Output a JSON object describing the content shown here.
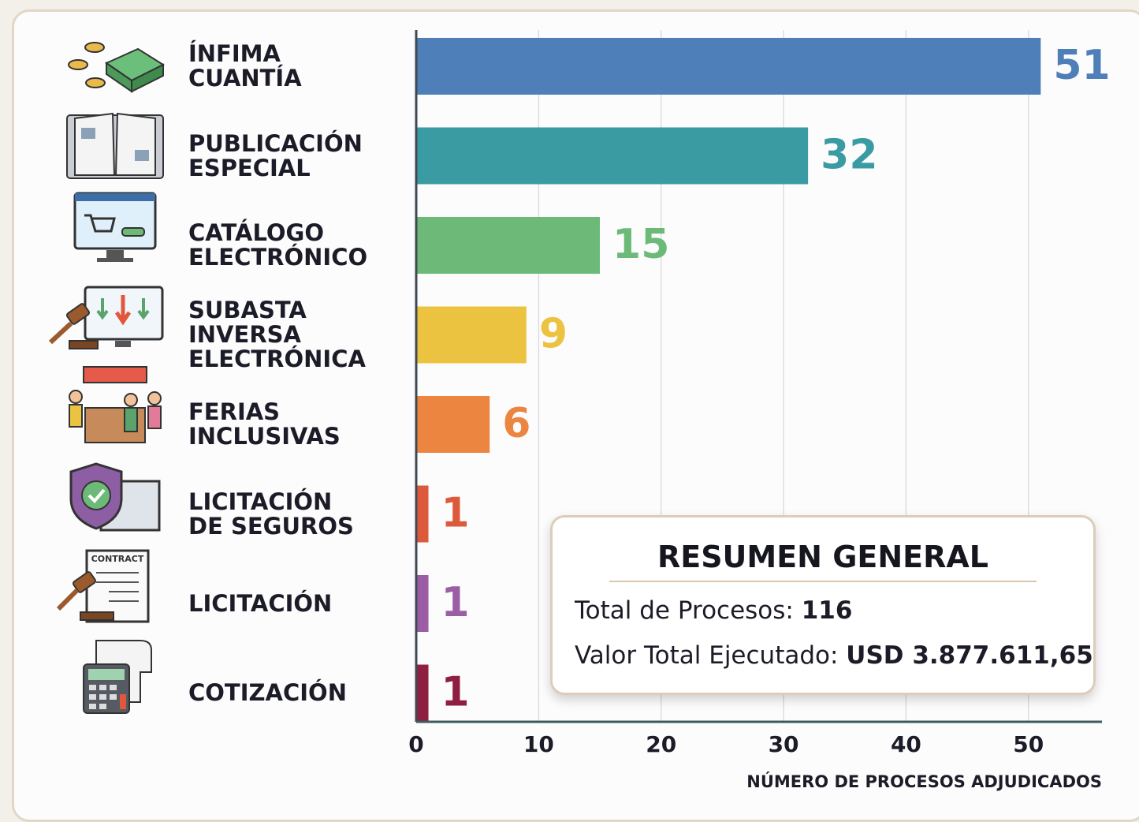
{
  "chart_data": {
    "type": "bar",
    "orientation": "horizontal",
    "categories": [
      "ÍNFIMA\nCUANTÍA",
      "PUBLICACIÓN\nESPECIAL",
      "CATÁLOGO\nELECTRÓNICO",
      "SUBASTA\nINVERSA\nELECTRÓNICA",
      "FERIAS\nINCLUSIVAS",
      "LICITACIÓN\nDE SEGUROS",
      "LICITACIÓN",
      "COTIZACIÓN"
    ],
    "values": [
      51,
      32,
      15,
      9,
      6,
      1,
      1,
      1
    ],
    "colors": [
      "#4f7fb8",
      "#3a9ba3",
      "#6dba78",
      "#ebc340",
      "#ec853f",
      "#dc5a3b",
      "#9b5ea5",
      "#8e1f40"
    ],
    "xlim": [
      0,
      56
    ],
    "xticks": [
      0,
      10,
      20,
      30,
      40,
      50
    ],
    "grid": true,
    "xlabel": "NÚMERO DE PROCESOS ADJUDICADOS"
  },
  "summary": {
    "title": "RESUMEN GENERAL",
    "lines": [
      {
        "label": "Total de Procesos:",
        "value": "116"
      },
      {
        "label": "Valor Total Ejecutado:",
        "value": "USD 3.877.611,65"
      }
    ]
  }
}
